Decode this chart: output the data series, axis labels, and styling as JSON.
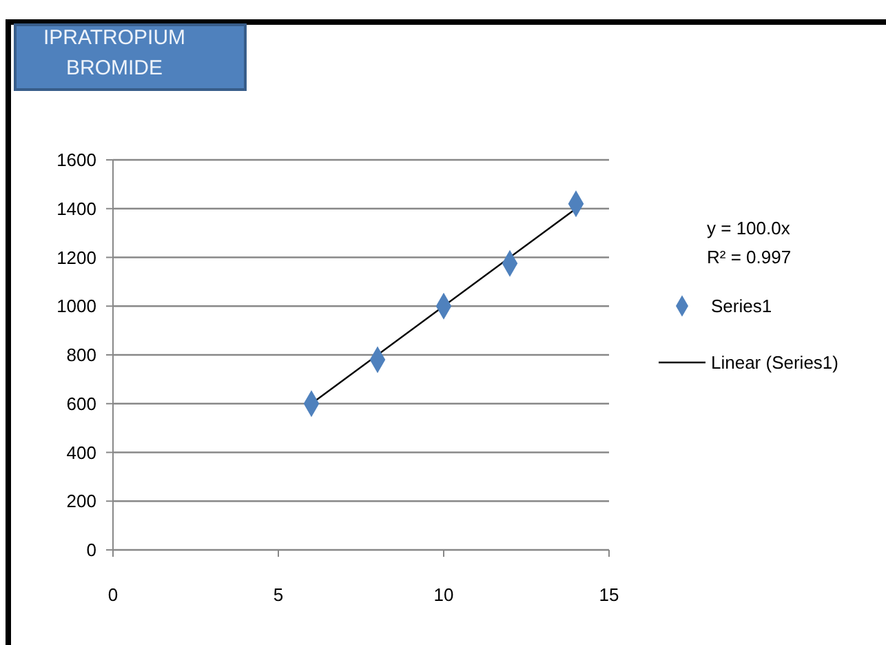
{
  "chart_data": {
    "type": "scatter",
    "title": "IPRATROPIUM BROMIDE",
    "annotations": [
      "y = 100.0x",
      "R² = 0.997"
    ],
    "xlim": [
      0,
      15
    ],
    "xticks": [
      0,
      5,
      10,
      15
    ],
    "ylim": [
      0,
      1600
    ],
    "yticks": [
      0,
      200,
      400,
      600,
      800,
      1000,
      1200,
      1400,
      1600
    ],
    "grid": "y",
    "legend": "right",
    "marker": "diamond",
    "series": [
      {
        "name": "Series1",
        "color": "#4f81bd",
        "x": [
          6,
          8,
          10,
          12,
          14
        ],
        "values": [
          600,
          780,
          1000,
          1175,
          1420
        ]
      },
      {
        "name": "Linear (Series1)",
        "type": "line",
        "color": "#000000",
        "x": [
          6,
          14
        ],
        "values": [
          600,
          1400
        ],
        "marker": "none",
        "line_style": "solid"
      }
    ]
  }
}
